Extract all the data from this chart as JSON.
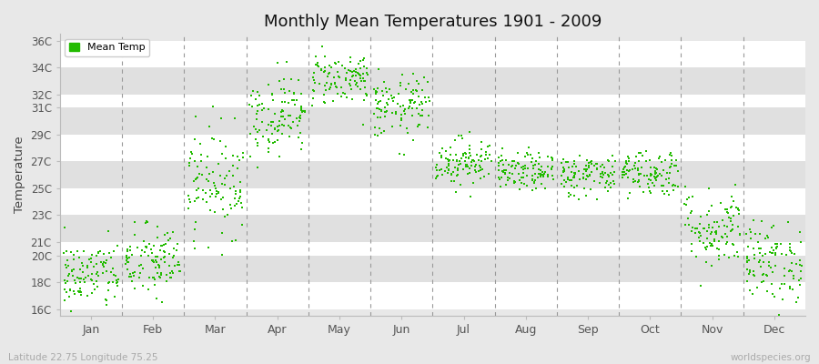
{
  "title": "Monthly Mean Temperatures 1901 - 2009",
  "ylabel": "Temperature",
  "xlabel_bottom_left": "Latitude 22.75 Longitude 75.25",
  "xlabel_bottom_right": "worldspecies.org",
  "legend_label": "Mean Temp",
  "dot_color": "#22bb00",
  "bg_color": "#e8e8e8",
  "band_colors": [
    "#ffffff",
    "#e0e0e0"
  ],
  "ytick_labels": [
    "16C",
    "18C",
    "20C",
    "21C",
    "23C",
    "25C",
    "27C",
    "29C",
    "31C",
    "32C",
    "34C",
    "36C"
  ],
  "ytick_values": [
    16,
    18,
    20,
    21,
    23,
    25,
    27,
    29,
    31,
    32,
    34,
    36
  ],
  "months": [
    "Jan",
    "Feb",
    "Mar",
    "Apr",
    "May",
    "Jun",
    "Jul",
    "Aug",
    "Sep",
    "Oct",
    "Nov",
    "Dec"
  ],
  "xlim": [
    0,
    12
  ],
  "ylim": [
    15.5,
    36.5
  ],
  "n_years": 109,
  "seed": 42,
  "monthly_mean_temps": [
    18.5,
    19.5,
    25.5,
    30.5,
    33.2,
    31.0,
    27.0,
    26.2,
    26.0,
    26.2,
    22.0,
    19.5
  ],
  "monthly_std_temps": [
    1.3,
    1.4,
    2.0,
    1.5,
    1.0,
    1.2,
    0.9,
    0.7,
    0.8,
    0.9,
    1.5,
    1.5
  ]
}
